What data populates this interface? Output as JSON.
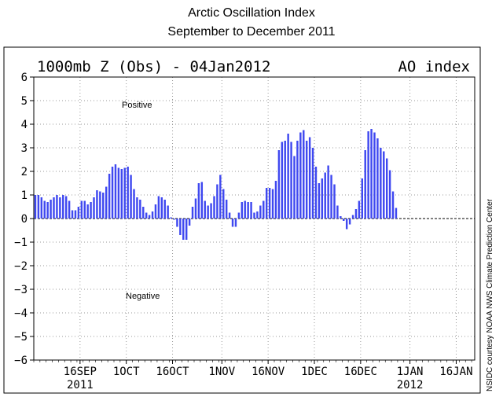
{
  "chart_data": {
    "type": "bar",
    "title": "Arctic Oscillation Index",
    "subtitle": "September to December 2011",
    "header_left": "1000mb Z (Obs) - 04Jan2012",
    "header_right": "AO index",
    "annotations": [
      "Positive",
      "Negative"
    ],
    "credit": "NSIDC courtesy NOAA NWS Climate Prediction Center",
    "ylim": [
      -6,
      6
    ],
    "yticks": [
      6,
      5,
      4,
      3,
      2,
      1,
      0,
      -1,
      -2,
      -3,
      -4,
      -5,
      -6
    ],
    "xlim": [
      "2011-09-01",
      "2012-01-22"
    ],
    "xticks": [
      {
        "date": "2011-09-16",
        "label": "16SEP",
        "sub": "2011"
      },
      {
        "date": "2011-10-01",
        "label": "1OCT",
        "sub": ""
      },
      {
        "date": "2011-10-16",
        "label": "16OCT",
        "sub": ""
      },
      {
        "date": "2011-11-01",
        "label": "1NOV",
        "sub": ""
      },
      {
        "date": "2011-11-16",
        "label": "16NOV",
        "sub": ""
      },
      {
        "date": "2011-12-01",
        "label": "1DEC",
        "sub": ""
      },
      {
        "date": "2011-12-16",
        "label": "16DEC",
        "sub": ""
      },
      {
        "date": "2012-01-01",
        "label": "1JAN",
        "sub": "2012"
      },
      {
        "date": "2012-01-16",
        "label": "16JAN",
        "sub": ""
      }
    ],
    "grid": true,
    "series": [
      {
        "start_date": "2011-09-01",
        "bar_color": "#3f48f0",
        "values": [
          1.0,
          1.0,
          0.9,
          0.75,
          0.7,
          0.8,
          0.9,
          1.0,
          0.9,
          1.0,
          0.95,
          0.75,
          0.35,
          0.35,
          0.5,
          0.75,
          0.75,
          0.6,
          0.7,
          0.9,
          1.2,
          1.15,
          1.1,
          1.35,
          1.9,
          2.2,
          2.3,
          2.15,
          2.1,
          2.15,
          2.2,
          1.85,
          1.25,
          0.9,
          0.8,
          0.5,
          0.25,
          0.15,
          0.3,
          0.6,
          0.95,
          0.9,
          0.8,
          0.55,
          0.05,
          -0.05,
          -0.35,
          -0.7,
          -0.9,
          -0.9,
          -0.3,
          0.5,
          0.85,
          1.5,
          1.55,
          0.75,
          0.55,
          0.65,
          0.95,
          1.45,
          1.85,
          1.25,
          0.8,
          0.25,
          -0.35,
          -0.35,
          0.25,
          0.7,
          0.75,
          0.7,
          0.7,
          0.25,
          0.3,
          0.55,
          0.75,
          1.3,
          1.3,
          1.25,
          1.6,
          2.9,
          3.25,
          3.3,
          3.6,
          3.25,
          2.65,
          3.3,
          3.65,
          3.75,
          3.3,
          3.45,
          3.0,
          2.2,
          1.5,
          1.7,
          1.95,
          2.25,
          1.85,
          1.45,
          0.55,
          0.1,
          -0.1,
          -0.45,
          -0.25,
          0.15,
          0.4,
          0.75,
          1.7,
          2.9,
          3.7,
          3.8,
          3.65,
          3.4,
          3.0,
          2.85,
          2.55,
          2.05,
          1.15,
          0.45
        ]
      }
    ]
  }
}
